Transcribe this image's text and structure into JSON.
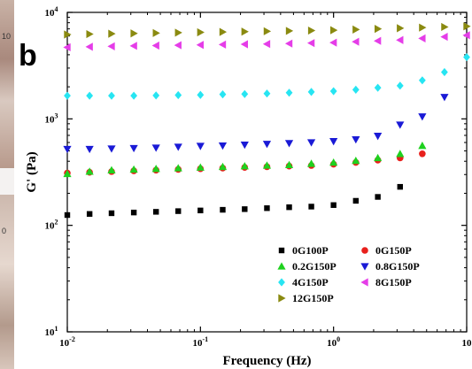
{
  "panel_label": "b",
  "photo_marks": [
    "10",
    "0"
  ],
  "chart_data": {
    "type": "scatter",
    "title": "",
    "xlabel": "Frequency (Hz)",
    "ylabel": "G' (Pa)",
    "x_scale": "log",
    "y_scale": "log",
    "xlim": [
      0.01,
      10
    ],
    "ylim": [
      10,
      10000
    ],
    "x_ticks": [
      {
        "value": 0.01,
        "base": "10",
        "exp": "-2"
      },
      {
        "value": 0.1,
        "base": "10",
        "exp": "-1"
      },
      {
        "value": 1,
        "base": "10",
        "exp": "0"
      },
      {
        "value": 10,
        "base": "10",
        "exp": ""
      }
    ],
    "y_ticks": [
      {
        "value": 10,
        "base": "10",
        "exp": "1"
      },
      {
        "value": 100,
        "base": "10",
        "exp": "2"
      },
      {
        "value": 1000,
        "base": "10",
        "exp": "3"
      },
      {
        "value": 10000,
        "base": "10",
        "exp": "4"
      }
    ],
    "grid": false,
    "legend_position": "bottom-right",
    "x": [
      0.01,
      0.0147,
      0.0215,
      0.0316,
      0.0464,
      0.0681,
      0.1,
      0.147,
      0.215,
      0.316,
      0.464,
      0.681,
      1,
      1.47,
      2.15,
      3.16,
      4.64,
      6.81,
      10
    ],
    "series": [
      {
        "name": "0G100P",
        "color": "#000000",
        "marker": "square",
        "values": [
          125,
          128,
          130,
          132,
          134,
          136,
          138,
          140,
          142,
          145,
          148,
          150,
          155,
          170,
          185,
          230,
          null,
          null,
          null
        ]
      },
      {
        "name": "0G150P",
        "color": "#e8201c",
        "marker": "circle",
        "values": [
          310,
          315,
          320,
          325,
          330,
          335,
          340,
          345,
          350,
          355,
          360,
          365,
          375,
          390,
          410,
          430,
          470,
          null,
          null
        ]
      },
      {
        "name": "0.2G150P",
        "color": "#1ed11e",
        "marker": "triangle-up",
        "values": [
          305,
          320,
          330,
          335,
          340,
          345,
          350,
          355,
          360,
          365,
          370,
          380,
          390,
          405,
          430,
          470,
          560,
          null,
          null
        ]
      },
      {
        "name": "0.8G150P",
        "color": "#1a1ad6",
        "marker": "triangle-down",
        "values": [
          520,
          520,
          525,
          530,
          535,
          545,
          555,
          560,
          570,
          580,
          590,
          600,
          615,
          640,
          690,
          880,
          1050,
          1600,
          null
        ]
      },
      {
        "name": "4G150P",
        "color": "#27e5f2",
        "marker": "diamond",
        "values": [
          1650,
          1650,
          1650,
          1650,
          1660,
          1670,
          1680,
          1700,
          1710,
          1730,
          1760,
          1790,
          1820,
          1880,
          1960,
          2050,
          2300,
          2750,
          3800
        ]
      },
      {
        "name": "8G150P",
        "color": "#e53de8",
        "marker": "triangle-left",
        "values": [
          4700,
          4750,
          4800,
          4850,
          4880,
          4920,
          4950,
          4990,
          5020,
          5050,
          5100,
          5150,
          5200,
          5300,
          5400,
          5500,
          5700,
          5900,
          6100
        ]
      },
      {
        "name": "12G150P",
        "color": "#8a8a10",
        "marker": "triangle-right",
        "values": [
          6200,
          6250,
          6300,
          6350,
          6400,
          6450,
          6500,
          6550,
          6600,
          6650,
          6700,
          6750,
          6800,
          6900,
          7000,
          7100,
          7200,
          7300,
          7400
        ]
      }
    ]
  }
}
